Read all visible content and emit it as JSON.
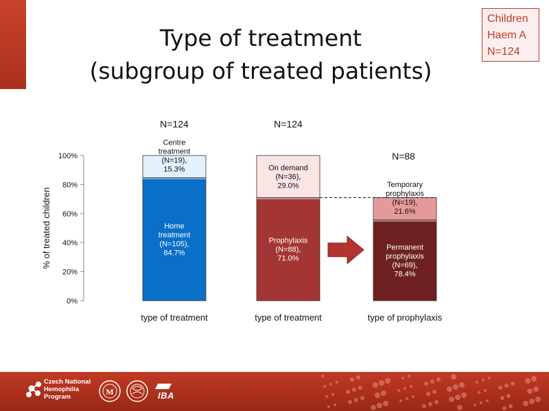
{
  "title_line1": "Type of treatment",
  "title_line2": "(subgroup of treated patients)",
  "infobox": {
    "line1": "Children",
    "line2": "Haem A",
    "line3": "N=124"
  },
  "footer": {
    "line1": "Czech National",
    "line2": "Hemophilia",
    "line3": "Program",
    "logo3": "IBA"
  },
  "colors": {
    "blue": "#0a6fc8",
    "light_blue": "#e4f0fb",
    "red": "#a33634",
    "light_red": "#fbe4e4",
    "dark_red": "#6e2120",
    "pink": "#e59a9a",
    "arrow": "#b2332f",
    "footer": "#b5321e"
  },
  "chart_data": {
    "type": "bar",
    "stacked": true,
    "ylabel": "% of treated children",
    "ylim": [
      0,
      100
    ],
    "yticks": [
      "0%",
      "20%",
      "40%",
      "60%",
      "80%",
      "100%"
    ],
    "grid": false,
    "categories": [
      "type of treatment",
      "type of treatment",
      "type of prophylaxis"
    ],
    "totals": [
      "N=124",
      "N=124",
      "N=88"
    ],
    "bars": [
      {
        "segments": [
          {
            "label": [
              "Home",
              "treatment",
              "(N=105),",
              "84.7%"
            ],
            "value": 84.7,
            "color": "#0a6fc8",
            "text_color": "#ffffff"
          },
          {
            "label": [
              "Centre",
              "treatment",
              "(N=19),",
              "15.3%"
            ],
            "value": 15.3,
            "color": "#e4f0fb",
            "text_color": "#111111"
          }
        ]
      },
      {
        "segments": [
          {
            "label": [
              "Prophylaxis",
              "(N=88),",
              "71.0%"
            ],
            "value": 71.0,
            "color": "#a33634",
            "text_color": "#ffffff"
          },
          {
            "label": [
              "On demand",
              "(N=36),",
              "29.0%"
            ],
            "value": 29.0,
            "color": "#fbe4e4",
            "text_color": "#111111"
          }
        ]
      },
      {
        "segments": [
          {
            "label": [
              "Permanent",
              "prophylaxis",
              "(N=69),",
              "78.4%"
            ],
            "value": 78.4,
            "color": "#6e2120",
            "text_color": "#ffffff"
          },
          {
            "label": [
              "Temporary",
              "prophylaxis",
              "(N=19),",
              "21.6%"
            ],
            "value": 21.6,
            "color": "#e59a9a",
            "text_color": "#111111"
          }
        ]
      }
    ],
    "third_bar_scale": 71.0
  }
}
